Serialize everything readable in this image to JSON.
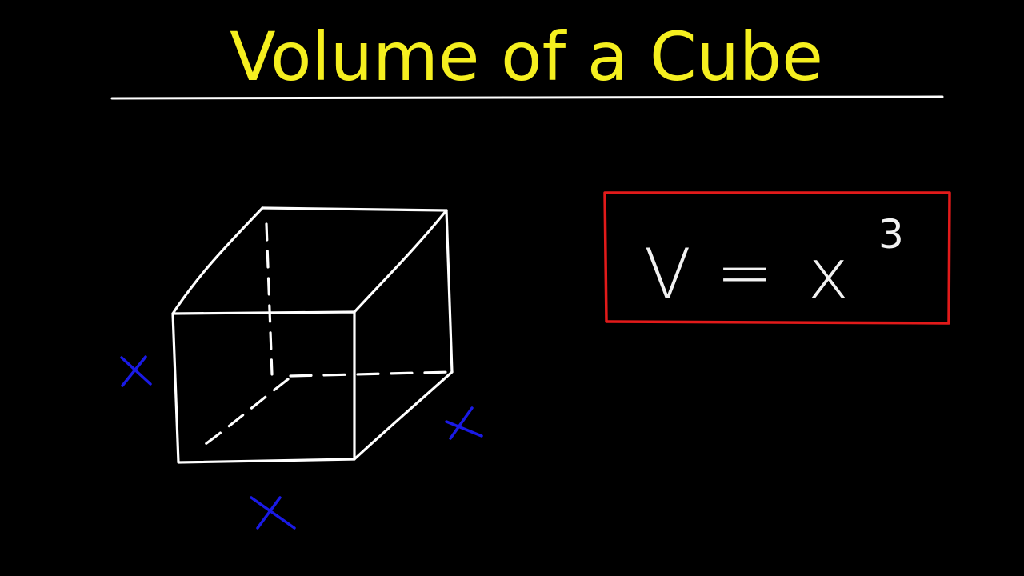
{
  "title": "Volume of a Cube",
  "colors": {
    "background": "#000000",
    "title": "#f5ef1f",
    "underline": "#ffffff",
    "cube_stroke": "#ffffff",
    "edge_label": "#1a1ae6",
    "formula_box": "#e21a1a",
    "formula_text": "#f2f2f2"
  },
  "cube": {
    "edge_labels": [
      "x",
      "x",
      "x"
    ]
  },
  "formula": {
    "lhs": "V",
    "equals": "=",
    "base": "x",
    "exponent": "3"
  }
}
